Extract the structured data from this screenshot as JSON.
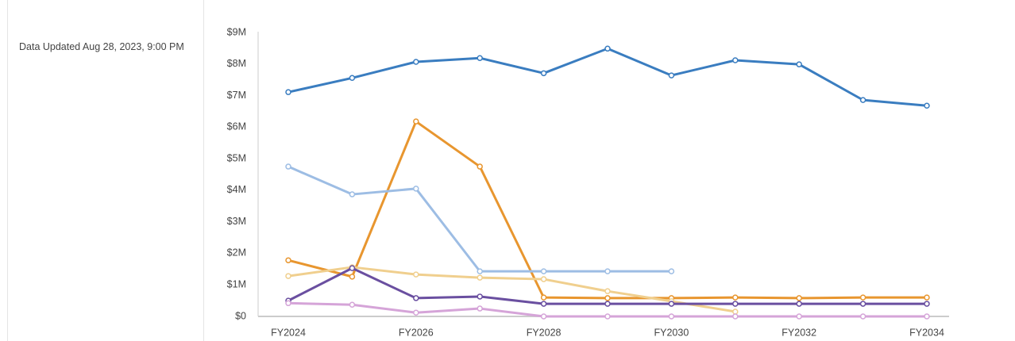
{
  "panel": {
    "updated": "Data Updated Aug 28, 2023, 9:00 PM"
  },
  "chart_data": {
    "type": "line",
    "categories": [
      "FY2024",
      null,
      "FY2026",
      null,
      "FY2028",
      null,
      "FY2030",
      null,
      "FY2032",
      null,
      "FY2034"
    ],
    "ylim": [
      0,
      9
    ],
    "yticks": [
      {
        "value": 0,
        "label": "$0"
      },
      {
        "value": 1,
        "label": "$1M"
      },
      {
        "value": 2,
        "label": "$2M"
      },
      {
        "value": 3,
        "label": "$3M"
      },
      {
        "value": 4,
        "label": "$4M"
      },
      {
        "value": 5,
        "label": "$5M"
      },
      {
        "value": 6,
        "label": "$6M"
      },
      {
        "value": 7,
        "label": "$7M"
      },
      {
        "value": 8,
        "label": "$8M"
      },
      {
        "value": 9,
        "label": "$9M"
      }
    ],
    "series": [
      {
        "color": "#3a7dc0",
        "values": [
          7.11,
          7.56,
          8.07,
          8.19,
          7.71,
          8.49,
          7.64,
          8.12,
          7.99,
          6.86,
          6.68
        ]
      },
      {
        "color": "#e8962f",
        "values": [
          1.78,
          1.26,
          6.18,
          4.75,
          0.6,
          0.58,
          0.58,
          0.6,
          0.58,
          0.6,
          0.6
        ]
      },
      {
        "color": "#9dbde4",
        "values": [
          4.75,
          3.87,
          4.05,
          1.43,
          1.43,
          1.43,
          1.43,
          null,
          null,
          null,
          null
        ]
      },
      {
        "color": "#f0cf8e",
        "values": [
          1.28,
          1.56,
          1.33,
          1.23,
          1.18,
          0.8,
          0.48,
          0.15,
          null,
          null,
          null
        ]
      },
      {
        "color": "#6a4fa0",
        "values": [
          0.5,
          1.53,
          0.58,
          0.63,
          0.4,
          0.4,
          0.4,
          0.4,
          0.4,
          0.4,
          0.4
        ]
      },
      {
        "color": "#d5a4d8",
        "values": [
          0.42,
          0.37,
          0.12,
          0.25,
          0,
          0,
          0,
          0,
          0,
          0,
          0
        ]
      }
    ]
  }
}
